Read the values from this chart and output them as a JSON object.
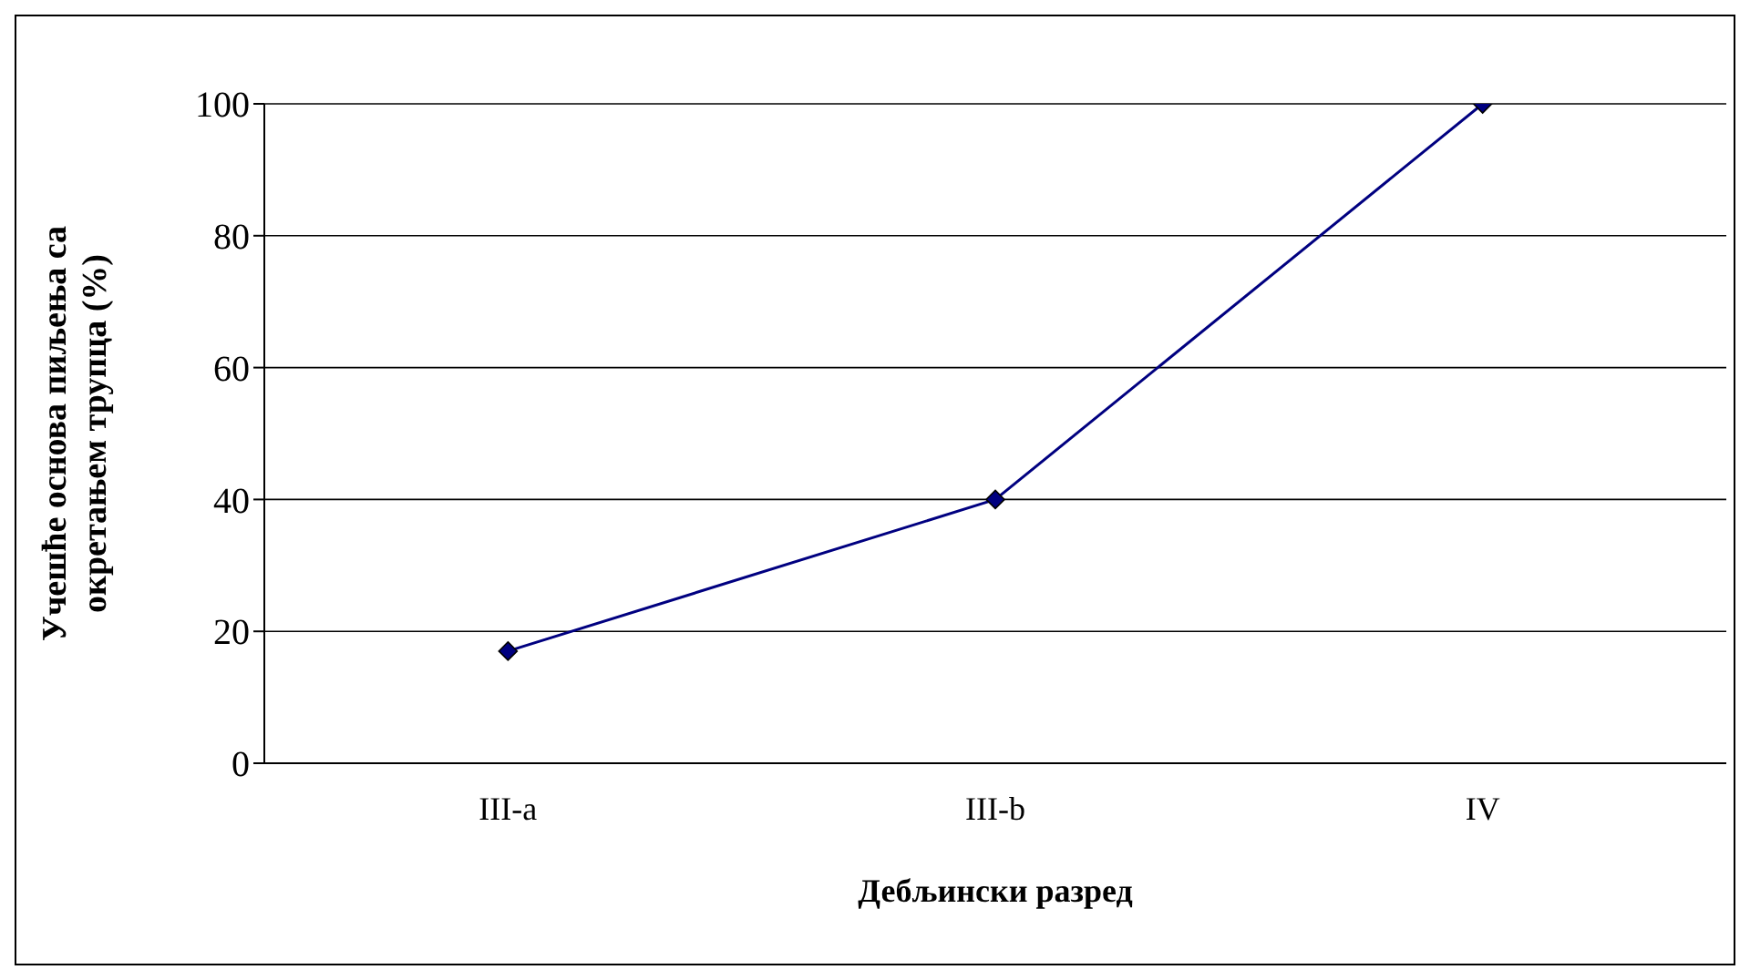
{
  "chart_data": {
    "type": "line",
    "xlabel": "Дебљински разред",
    "ylabel": "Учешће основа пиљења са\nокретањем трупца (%)",
    "categories": [
      "III-a",
      "III-b",
      "IV"
    ],
    "series": [
      {
        "color": "#000080",
        "values": [
          17,
          40,
          100
        ]
      }
    ],
    "ylim": [
      0,
      100
    ],
    "yticks": [
      0,
      20,
      40,
      60,
      80,
      100
    ],
    "grid": "y",
    "marker": "diamond",
    "line_style": "solid"
  }
}
